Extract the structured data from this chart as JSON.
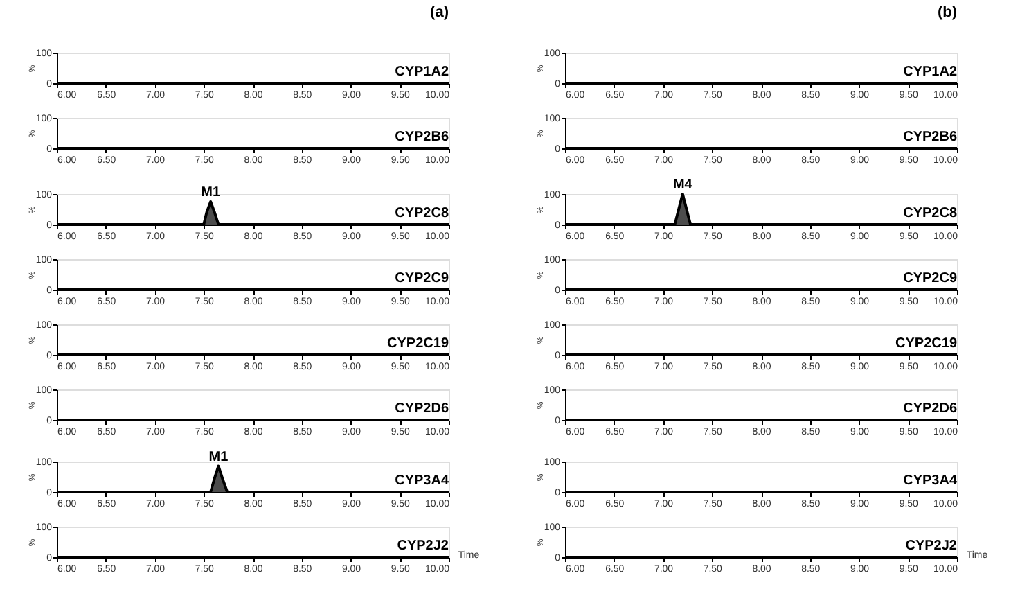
{
  "chart_data": [
    {
      "type": "line",
      "title": "CYP1A2",
      "annotations": [
        "(a)"
      ],
      "ylabel": "%",
      "x": [
        6,
        10
      ],
      "values": [
        0,
        0
      ],
      "color": "#000000",
      "xlim": [
        6,
        10
      ],
      "ylim": [
        0,
        100
      ],
      "yticks": [
        0,
        100
      ],
      "xticks": [
        {
          "value": 6,
          "label": "6.00"
        },
        {
          "value": 6.5,
          "label": "6.50"
        },
        {
          "value": 7,
          "label": "7.00"
        },
        {
          "value": 7.5,
          "label": "7.50"
        },
        {
          "value": 8,
          "label": "8.00"
        },
        {
          "value": 8.5,
          "label": "8.50"
        },
        {
          "value": 9,
          "label": "9.00"
        },
        {
          "value": 9.5,
          "label": "9.50"
        },
        {
          "value": 10,
          "label": "10.00"
        }
      ],
      "grid": false
    },
    {
      "type": "line",
      "title": "CYP1A2",
      "annotations": [
        "(b)"
      ],
      "ylabel": "%",
      "x": [
        6,
        10
      ],
      "values": [
        0,
        0
      ],
      "color": "#000000",
      "xlim": [
        6,
        10
      ],
      "ylim": [
        0,
        100
      ],
      "yticks": [
        0,
        100
      ],
      "xticks": [
        {
          "value": 6,
          "label": "6.00"
        },
        {
          "value": 6.5,
          "label": "6.50"
        },
        {
          "value": 7,
          "label": "7.00"
        },
        {
          "value": 7.5,
          "label": "7.50"
        },
        {
          "value": 8,
          "label": "8.00"
        },
        {
          "value": 8.5,
          "label": "8.50"
        },
        {
          "value": 9,
          "label": "9.00"
        },
        {
          "value": 9.5,
          "label": "9.50"
        },
        {
          "value": 10,
          "label": "10.00"
        }
      ],
      "grid": false
    },
    {
      "type": "line",
      "title": "CYP2B6",
      "ylabel": "%",
      "x": [
        6,
        10
      ],
      "values": [
        0,
        0
      ],
      "color": "#000000",
      "xlim": [
        6,
        10
      ],
      "ylim": [
        0,
        100
      ],
      "yticks": [
        0,
        100
      ],
      "xticks": [
        {
          "value": 6,
          "label": "6.00"
        },
        {
          "value": 6.5,
          "label": "6.50"
        },
        {
          "value": 7,
          "label": "7.00"
        },
        {
          "value": 7.5,
          "label": "7.50"
        },
        {
          "value": 8,
          "label": "8.00"
        },
        {
          "value": 8.5,
          "label": "8.50"
        },
        {
          "value": 9,
          "label": "9.00"
        },
        {
          "value": 9.5,
          "label": "9.50"
        },
        {
          "value": 10,
          "label": "10.00"
        }
      ],
      "grid": false
    },
    {
      "type": "line",
      "title": "CYP2B6",
      "ylabel": "%",
      "x": [
        6,
        10
      ],
      "values": [
        0,
        0
      ],
      "color": "#000000",
      "xlim": [
        6,
        10
      ],
      "ylim": [
        0,
        100
      ],
      "yticks": [
        0,
        100
      ],
      "xticks": [
        {
          "value": 6,
          "label": "6.00"
        },
        {
          "value": 6.5,
          "label": "6.50"
        },
        {
          "value": 7,
          "label": "7.00"
        },
        {
          "value": 7.5,
          "label": "7.50"
        },
        {
          "value": 8,
          "label": "8.00"
        },
        {
          "value": 8.5,
          "label": "8.50"
        },
        {
          "value": 9,
          "label": "9.00"
        },
        {
          "value": 9.5,
          "label": "9.50"
        },
        {
          "value": 10,
          "label": "10.00"
        }
      ],
      "grid": false
    },
    {
      "type": "area",
      "title": "CYP2C8",
      "annotations": [
        {
          "text": "M1",
          "x": 7.57,
          "y": 75
        }
      ],
      "ylabel": "%",
      "x": [
        6,
        7.5,
        7.53,
        7.57,
        7.61,
        7.65,
        10
      ],
      "values": [
        0,
        0,
        40,
        75,
        40,
        0,
        0
      ],
      "color": "#000000",
      "xlim": [
        6,
        10
      ],
      "ylim": [
        0,
        100
      ],
      "yticks": [
        0,
        100
      ],
      "xticks": [
        {
          "value": 6,
          "label": "6.00"
        },
        {
          "value": 6.5,
          "label": "6.50"
        },
        {
          "value": 7,
          "label": "7.00"
        },
        {
          "value": 7.5,
          "label": "7.50"
        },
        {
          "value": 8,
          "label": "8.00"
        },
        {
          "value": 8.5,
          "label": "8.50"
        },
        {
          "value": 9,
          "label": "9.00"
        },
        {
          "value": 9.5,
          "label": "9.50"
        },
        {
          "value": 10,
          "label": "10.00"
        }
      ],
      "grid": false
    },
    {
      "type": "area",
      "title": "CYP2C8",
      "annotations": [
        {
          "text": "M4",
          "x": 7.2,
          "y": 100
        }
      ],
      "ylabel": "%",
      "x": [
        6,
        7.12,
        7.16,
        7.2,
        7.24,
        7.28,
        10
      ],
      "values": [
        0,
        0,
        50,
        100,
        50,
        0,
        0
      ],
      "color": "#000000",
      "xlim": [
        6,
        10
      ],
      "ylim": [
        0,
        100
      ],
      "yticks": [
        0,
        100
      ],
      "xticks": [
        {
          "value": 6,
          "label": "6.00"
        },
        {
          "value": 6.5,
          "label": "6.50"
        },
        {
          "value": 7,
          "label": "7.00"
        },
        {
          "value": 7.5,
          "label": "7.50"
        },
        {
          "value": 8,
          "label": "8.00"
        },
        {
          "value": 8.5,
          "label": "8.50"
        },
        {
          "value": 9,
          "label": "9.00"
        },
        {
          "value": 9.5,
          "label": "9.50"
        },
        {
          "value": 10,
          "label": "10.00"
        }
      ],
      "grid": false
    },
    {
      "type": "line",
      "title": "CYP2C9",
      "ylabel": "%",
      "x": [
        6,
        10
      ],
      "values": [
        0,
        0
      ],
      "color": "#000000",
      "xlim": [
        6,
        10
      ],
      "ylim": [
        0,
        100
      ],
      "yticks": [
        0,
        100
      ],
      "xticks": [
        {
          "value": 6,
          "label": "6.00"
        },
        {
          "value": 6.5,
          "label": "6.50"
        },
        {
          "value": 7,
          "label": "7.00"
        },
        {
          "value": 7.5,
          "label": "7.50"
        },
        {
          "value": 8,
          "label": "8.00"
        },
        {
          "value": 8.5,
          "label": "8.50"
        },
        {
          "value": 9,
          "label": "9.00"
        },
        {
          "value": 9.5,
          "label": "9.50"
        },
        {
          "value": 10,
          "label": "10.00"
        }
      ],
      "grid": false
    },
    {
      "type": "line",
      "title": "CYP2C9",
      "ylabel": "%",
      "x": [
        6,
        10
      ],
      "values": [
        0,
        0
      ],
      "color": "#000000",
      "xlim": [
        6,
        10
      ],
      "ylim": [
        0,
        100
      ],
      "yticks": [
        0,
        100
      ],
      "xticks": [
        {
          "value": 6,
          "label": "6.00"
        },
        {
          "value": 6.5,
          "label": "6.50"
        },
        {
          "value": 7,
          "label": "7.00"
        },
        {
          "value": 7.5,
          "label": "7.50"
        },
        {
          "value": 8,
          "label": "8.00"
        },
        {
          "value": 8.5,
          "label": "8.50"
        },
        {
          "value": 9,
          "label": "9.00"
        },
        {
          "value": 9.5,
          "label": "9.50"
        },
        {
          "value": 10,
          "label": "10.00"
        }
      ],
      "grid": false
    },
    {
      "type": "line",
      "title": "CYP2C19",
      "ylabel": "%",
      "x": [
        6,
        10
      ],
      "values": [
        0,
        0
      ],
      "color": "#000000",
      "xlim": [
        6,
        10
      ],
      "ylim": [
        0,
        100
      ],
      "yticks": [
        0,
        100
      ],
      "xticks": [
        {
          "value": 6,
          "label": "6.00"
        },
        {
          "value": 6.5,
          "label": "6.50"
        },
        {
          "value": 7,
          "label": "7.00"
        },
        {
          "value": 7.5,
          "label": "7.50"
        },
        {
          "value": 8,
          "label": "8.00"
        },
        {
          "value": 8.5,
          "label": "8.50"
        },
        {
          "value": 9,
          "label": "9.00"
        },
        {
          "value": 9.5,
          "label": "9.50"
        },
        {
          "value": 10,
          "label": "10.00"
        }
      ],
      "grid": false
    },
    {
      "type": "line",
      "title": "CYP2C19",
      "ylabel": "%",
      "x": [
        6,
        10
      ],
      "values": [
        0,
        0
      ],
      "color": "#000000",
      "xlim": [
        6,
        10
      ],
      "ylim": [
        0,
        100
      ],
      "yticks": [
        0,
        100
      ],
      "xticks": [
        {
          "value": 6,
          "label": "6.00"
        },
        {
          "value": 6.5,
          "label": "6.50"
        },
        {
          "value": 7,
          "label": "7.00"
        },
        {
          "value": 7.5,
          "label": "7.50"
        },
        {
          "value": 8,
          "label": "8.00"
        },
        {
          "value": 8.5,
          "label": "8.50"
        },
        {
          "value": 9,
          "label": "9.00"
        },
        {
          "value": 9.5,
          "label": "9.50"
        },
        {
          "value": 10,
          "label": "10.00"
        }
      ],
      "grid": false
    },
    {
      "type": "line",
      "title": "CYP2D6",
      "ylabel": "%",
      "x": [
        6,
        10
      ],
      "values": [
        0,
        0
      ],
      "color": "#000000",
      "xlim": [
        6,
        10
      ],
      "ylim": [
        0,
        100
      ],
      "yticks": [
        0,
        100
      ],
      "xticks": [
        {
          "value": 6,
          "label": "6.00"
        },
        {
          "value": 6.5,
          "label": "6.50"
        },
        {
          "value": 7,
          "label": "7.00"
        },
        {
          "value": 7.5,
          "label": "7.50"
        },
        {
          "value": 8,
          "label": "8.00"
        },
        {
          "value": 8.5,
          "label": "8.50"
        },
        {
          "value": 9,
          "label": "9.00"
        },
        {
          "value": 9.5,
          "label": "9.50"
        },
        {
          "value": 10,
          "label": "10.00"
        }
      ],
      "grid": false
    },
    {
      "type": "line",
      "title": "CYP2D6",
      "ylabel": "%",
      "x": [
        6,
        10
      ],
      "values": [
        0,
        0
      ],
      "color": "#000000",
      "xlim": [
        6,
        10
      ],
      "ylim": [
        0,
        100
      ],
      "yticks": [
        0,
        100
      ],
      "xticks": [
        {
          "value": 6,
          "label": "6.00"
        },
        {
          "value": 6.5,
          "label": "6.50"
        },
        {
          "value": 7,
          "label": "7.00"
        },
        {
          "value": 7.5,
          "label": "7.50"
        },
        {
          "value": 8,
          "label": "8.00"
        },
        {
          "value": 8.5,
          "label": "8.50"
        },
        {
          "value": 9,
          "label": "9.00"
        },
        {
          "value": 9.5,
          "label": "9.50"
        },
        {
          "value": 10,
          "label": "10.00"
        }
      ],
      "grid": false
    },
    {
      "type": "area",
      "title": "CYP3A4",
      "annotations": [
        {
          "text": "M1",
          "x": 7.65,
          "y": 85
        }
      ],
      "ylabel": "%",
      "x": [
        6,
        7.57,
        7.61,
        7.65,
        7.69,
        7.74,
        10
      ],
      "values": [
        0,
        0,
        45,
        85,
        45,
        0,
        0
      ],
      "color": "#000000",
      "xlim": [
        6,
        10
      ],
      "ylim": [
        0,
        100
      ],
      "yticks": [
        0,
        100
      ],
      "xticks": [
        {
          "value": 6,
          "label": "6.00"
        },
        {
          "value": 6.5,
          "label": "6.50"
        },
        {
          "value": 7,
          "label": "7.00"
        },
        {
          "value": 7.5,
          "label": "7.50"
        },
        {
          "value": 8,
          "label": "8.00"
        },
        {
          "value": 8.5,
          "label": "8.50"
        },
        {
          "value": 9,
          "label": "9.00"
        },
        {
          "value": 9.5,
          "label": "9.50"
        },
        {
          "value": 10,
          "label": "10.00"
        }
      ],
      "grid": false
    },
    {
      "type": "line",
      "title": "CYP3A4",
      "ylabel": "%",
      "x": [
        6,
        10
      ],
      "values": [
        0,
        0
      ],
      "color": "#000000",
      "xlim": [
        6,
        10
      ],
      "ylim": [
        0,
        100
      ],
      "yticks": [
        0,
        100
      ],
      "xticks": [
        {
          "value": 6,
          "label": "6.00"
        },
        {
          "value": 6.5,
          "label": "6.50"
        },
        {
          "value": 7,
          "label": "7.00"
        },
        {
          "value": 7.5,
          "label": "7.50"
        },
        {
          "value": 8,
          "label": "8.00"
        },
        {
          "value": 8.5,
          "label": "8.50"
        },
        {
          "value": 9,
          "label": "9.00"
        },
        {
          "value": 9.5,
          "label": "9.50"
        },
        {
          "value": 10,
          "label": "10.00"
        }
      ],
      "grid": false
    },
    {
      "type": "line",
      "title": "CYP2J2",
      "ylabel": "%",
      "xlabel": "Time",
      "x": [
        6,
        10
      ],
      "values": [
        0,
        0
      ],
      "color": "#000000",
      "xlim": [
        6,
        10
      ],
      "ylim": [
        0,
        100
      ],
      "yticks": [
        0,
        100
      ],
      "xticks": [
        {
          "value": 6,
          "label": "6.00"
        },
        {
          "value": 6.5,
          "label": "6.50"
        },
        {
          "value": 7,
          "label": "7.00"
        },
        {
          "value": 7.5,
          "label": "7.50"
        },
        {
          "value": 8,
          "label": "8.00"
        },
        {
          "value": 8.5,
          "label": "8.50"
        },
        {
          "value": 9,
          "label": "9.00"
        },
        {
          "value": 9.5,
          "label": "9.50"
        },
        {
          "value": 10,
          "label": "10.00"
        }
      ],
      "grid": false
    },
    {
      "type": "line",
      "title": "CYP2J2",
      "ylabel": "%",
      "xlabel": "Time",
      "x": [
        6,
        10
      ],
      "values": [
        0,
        0
      ],
      "color": "#000000",
      "xlim": [
        6,
        10
      ],
      "ylim": [
        0,
        100
      ],
      "yticks": [
        0,
        100
      ],
      "xticks": [
        {
          "value": 6,
          "label": "6.00"
        },
        {
          "value": 6.5,
          "label": "6.50"
        },
        {
          "value": 7,
          "label": "7.00"
        },
        {
          "value": 7.5,
          "label": "7.50"
        },
        {
          "value": 8,
          "label": "8.00"
        },
        {
          "value": 8.5,
          "label": "8.50"
        },
        {
          "value": 9,
          "label": "9.00"
        },
        {
          "value": 9.5,
          "label": "9.50"
        },
        {
          "value": 10,
          "label": "10.00"
        }
      ],
      "grid": false
    }
  ]
}
